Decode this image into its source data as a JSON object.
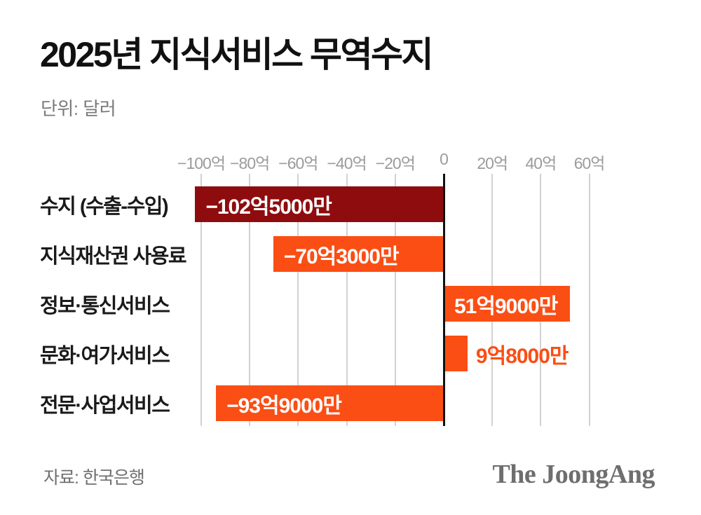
{
  "title": "2025년 지식서비스 무역수지",
  "unit_label": "단위: 달러",
  "source_label": "자료: 한국은행",
  "logo_text": "The JoongAng",
  "colors": {
    "total_bar": "#8e0c0d",
    "category_bar": "#fb4e14",
    "outside_value_text": "#fb4e14",
    "inside_value_text": "#ffffff",
    "gridline": "#d2d2d2",
    "zero_line": "#111111",
    "axis_text": "#9b9b9b"
  },
  "chart_data": {
    "type": "bar",
    "orientation": "horizontal",
    "title": "2025년 지식서비스 무역수지",
    "unit": "억 달러 (100 million USD)",
    "categories": [
      "수지 (수출-수입)",
      "지식재산권 사용료",
      "정보·통신서비스",
      "문화·여가서비스",
      "전문·사업서비스"
    ],
    "values": [
      -102.5,
      -70.3,
      51.9,
      9.8,
      -93.9
    ],
    "value_labels": [
      "−102억5000만",
      "−70억3000만",
      "51억9000만",
      "9억8000만",
      "−93억9000만"
    ],
    "bar_color_keys": [
      "total_bar",
      "category_bar",
      "category_bar",
      "category_bar",
      "category_bar"
    ],
    "value_label_placement": [
      "inside",
      "inside",
      "inside",
      "outside",
      "inside"
    ],
    "x_ticks": [
      -100,
      -80,
      -60,
      -40,
      -20,
      0,
      20,
      40,
      60
    ],
    "x_tick_labels": [
      "−100억",
      "−80억",
      "−60억",
      "−40억",
      "−20억",
      "0",
      "20억",
      "40억",
      "60억"
    ],
    "xlim": [
      -110,
      65
    ],
    "grid": "vertical",
    "legend": "none"
  }
}
